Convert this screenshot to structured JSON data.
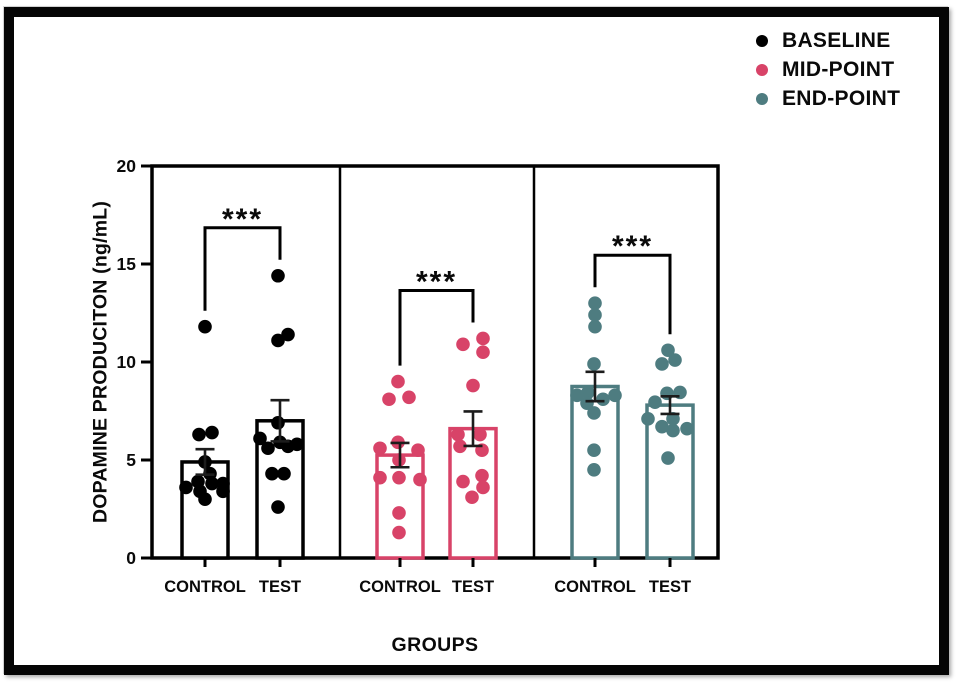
{
  "legend": {
    "items": [
      {
        "label": "BASELINE",
        "color": "#000000",
        "icon": "dot"
      },
      {
        "label": "MID-POINT",
        "color": "#D84368",
        "icon": "dot"
      },
      {
        "label": "END-POINT",
        "color": "#4E7C80",
        "icon": "dot"
      }
    ]
  },
  "chart_data": {
    "type": "bar",
    "title": "",
    "xlabel": "GROUPS",
    "ylabel": "DOPAMINE PRODUCITON (ng/mL)",
    "ylim": [
      0,
      20
    ],
    "yticks": [
      0,
      5,
      10,
      15,
      20
    ],
    "grid": false,
    "legend_position": "top-right",
    "error_bars": "SEM",
    "point_overlay": "jittered-dots",
    "panels": [
      {
        "series": "BASELINE",
        "color": "#000000",
        "significance": "***",
        "groups": [
          {
            "category": "CONTROL",
            "mean": 4.9,
            "sem": 0.65,
            "points": [
              11.8,
              6.4,
              6.3,
              4.9,
              4.3,
              3.9,
              3.8,
              3.8,
              3.6,
              3.4,
              3.4,
              3.0
            ],
            "jitter": [
              0,
              7,
              -6,
              0,
              5,
              -7,
              18,
              7,
              -19,
              -5,
              18,
              0
            ]
          },
          {
            "category": "TEST",
            "mean": 7.0,
            "sem": 1.05,
            "points": [
              14.4,
              11.4,
              11.1,
              6.9,
              6.1,
              5.9,
              5.8,
              5.7,
              5.6,
              4.3,
              4.3,
              2.6
            ],
            "jitter": [
              -2,
              8,
              -2,
              -2,
              -20,
              0,
              17,
              8,
              -12,
              -8,
              4,
              -2
            ]
          }
        ]
      },
      {
        "series": "MID-POINT",
        "color": "#D84368",
        "significance": "***",
        "groups": [
          {
            "category": "CONTROL",
            "mean": 5.25,
            "sem": 0.62,
            "points": [
              9.0,
              8.2,
              8.1,
              5.9,
              5.6,
              5.5,
              5.0,
              4.1,
              4.1,
              4.0,
              2.3,
              1.3
            ],
            "jitter": [
              -2,
              9,
              -11,
              -2,
              -20,
              18,
              -1,
              -20,
              -1,
              20,
              -1,
              -1
            ]
          },
          {
            "category": "TEST",
            "mean": 6.6,
            "sem": 0.88,
            "points": [
              11.2,
              10.9,
              10.5,
              8.8,
              6.3,
              6.3,
              5.7,
              5.5,
              4.2,
              3.9,
              3.6,
              3.1
            ],
            "jitter": [
              10,
              -10,
              10,
              0,
              -15,
              7,
              -13,
              9,
              9,
              -10,
              10,
              -1
            ]
          }
        ]
      },
      {
        "series": "END-POINT",
        "color": "#4E7C80",
        "significance": "***",
        "groups": [
          {
            "category": "CONTROL",
            "mean": 8.75,
            "sem": 0.75,
            "points": [
              13.0,
              12.4,
              11.8,
              9.9,
              8.45,
              8.3,
              8.3,
              8.1,
              7.9,
              7.4,
              5.5,
              4.5
            ],
            "jitter": [
              0,
              0,
              0,
              -1,
              -7,
              -18,
              20,
              8,
              -8,
              -1,
              -1,
              -1
            ]
          },
          {
            "category": "TEST",
            "mean": 7.8,
            "sem": 0.45,
            "points": [
              10.6,
              10.1,
              9.9,
              8.45,
              8.4,
              7.95,
              7.1,
              7.1,
              6.7,
              6.6,
              6.5,
              5.1
            ],
            "jitter": [
              -2,
              5,
              -8,
              10,
              -3,
              -15,
              -22,
              3,
              -8,
              17,
              3,
              -2
            ]
          }
        ]
      }
    ]
  }
}
